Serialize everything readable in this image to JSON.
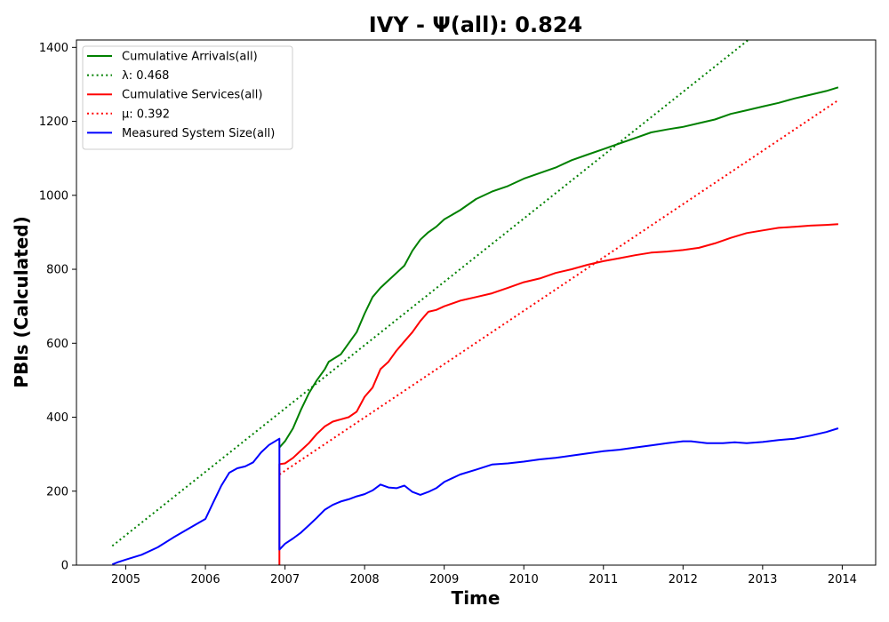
{
  "chart_data": {
    "type": "line",
    "title": "IVY -  Ψ(all): 0.824",
    "xlabel": "Time",
    "ylabel": "PBIs (Calculated)",
    "xlim": [
      2004.38,
      2014.42
    ],
    "ylim": [
      0,
      1420
    ],
    "xticks": [
      2005,
      2006,
      2007,
      2008,
      2009,
      2010,
      2011,
      2012,
      2013,
      2014
    ],
    "xtick_labels": [
      "2005",
      "2006",
      "2007",
      "2008",
      "2009",
      "2010",
      "2011",
      "2012",
      "2013",
      "2014"
    ],
    "yticks": [
      0,
      200,
      400,
      600,
      800,
      1000,
      1200,
      1400
    ],
    "ytick_labels": [
      "0",
      "200",
      "400",
      "600",
      "800",
      "1000",
      "1200",
      "1400"
    ],
    "grid": false,
    "legend_position": "top-left",
    "series": [
      {
        "name": "Cumulative Arrivals(all)",
        "style": "solid",
        "color": "#008000",
        "x": [
          2006.93,
          2007.0,
          2007.1,
          2007.2,
          2007.3,
          2007.4,
          2007.5,
          2007.55,
          2007.7,
          2007.8,
          2007.9,
          2008.0,
          2008.1,
          2008.2,
          2008.3,
          2008.4,
          2008.5,
          2008.6,
          2008.7,
          2008.8,
          2008.9,
          2009.0,
          2009.2,
          2009.4,
          2009.6,
          2009.8,
          2010.0,
          2010.2,
          2010.4,
          2010.6,
          2010.8,
          2011.0,
          2011.2,
          2011.4,
          2011.6,
          2011.8,
          2012.0,
          2012.2,
          2012.4,
          2012.6,
          2012.8,
          2013.0,
          2013.2,
          2013.4,
          2013.6,
          2013.8,
          2013.95
        ],
        "y": [
          318,
          335,
          370,
          420,
          465,
          500,
          530,
          550,
          570,
          600,
          630,
          680,
          725,
          750,
          770,
          790,
          810,
          850,
          880,
          900,
          915,
          935,
          960,
          990,
          1010,
          1025,
          1045,
          1060,
          1075,
          1095,
          1110,
          1125,
          1140,
          1155,
          1170,
          1178,
          1185,
          1195,
          1205,
          1220,
          1230,
          1240,
          1250,
          1262,
          1272,
          1282,
          1292
        ]
      },
      {
        "name": "λ: 0.468",
        "style": "dotted",
        "color": "#008000",
        "x": [
          2004.83,
          2012.82
        ],
        "y": [
          52,
          1420
        ]
      },
      {
        "name": "Cumulative Services(all)",
        "style": "solid",
        "color": "#ff0000",
        "x": [
          2006.93,
          2006.93,
          2007.0,
          2007.1,
          2007.2,
          2007.3,
          2007.4,
          2007.5,
          2007.6,
          2007.8,
          2007.9,
          2008.0,
          2008.1,
          2008.2,
          2008.3,
          2008.4,
          2008.5,
          2008.6,
          2008.7,
          2008.8,
          2008.9,
          2009.0,
          2009.2,
          2009.4,
          2009.6,
          2009.8,
          2010.0,
          2010.2,
          2010.4,
          2010.6,
          2010.8,
          2011.0,
          2011.2,
          2011.4,
          2011.6,
          2011.8,
          2012.0,
          2012.2,
          2012.4,
          2012.6,
          2012.8,
          2013.0,
          2013.2,
          2013.4,
          2013.6,
          2013.8,
          2013.95
        ],
        "y": [
          0,
          273,
          275,
          290,
          310,
          330,
          355,
          375,
          388,
          400,
          415,
          455,
          480,
          530,
          550,
          580,
          605,
          630,
          660,
          685,
          690,
          700,
          715,
          725,
          735,
          750,
          765,
          775,
          790,
          800,
          812,
          822,
          830,
          838,
          845,
          848,
          852,
          858,
          870,
          885,
          898,
          905,
          912,
          915,
          918,
          920,
          922
        ]
      },
      {
        "name": "μ: 0.392",
        "style": "dotted",
        "color": "#ff0000",
        "x": [
          2006.93,
          2013.95
        ],
        "y": [
          245,
          1257
        ]
      },
      {
        "name": "Measured System Size(all)",
        "style": "solid",
        "color": "#0000ff",
        "x": [
          2004.83,
          2004.9,
          2005.0,
          2005.2,
          2005.4,
          2005.6,
          2005.8,
          2006.0,
          2006.1,
          2006.2,
          2006.3,
          2006.4,
          2006.5,
          2006.6,
          2006.7,
          2006.8,
          2006.9,
          2006.93,
          2006.93,
          2007.0,
          2007.1,
          2007.2,
          2007.3,
          2007.4,
          2007.5,
          2007.6,
          2007.7,
          2007.8,
          2007.9,
          2008.0,
          2008.1,
          2008.2,
          2008.3,
          2008.4,
          2008.5,
          2008.6,
          2008.7,
          2008.8,
          2008.9,
          2009.0,
          2009.2,
          2009.4,
          2009.6,
          2009.8,
          2010.0,
          2010.2,
          2010.4,
          2010.6,
          2010.8,
          2011.0,
          2011.2,
          2011.4,
          2011.6,
          2011.8,
          2012.0,
          2012.1,
          2012.3,
          2012.5,
          2012.65,
          2012.8,
          2013.0,
          2013.2,
          2013.4,
          2013.6,
          2013.8,
          2013.95
        ],
        "y": [
          2,
          8,
          15,
          28,
          48,
          75,
          100,
          125,
          170,
          215,
          250,
          262,
          267,
          278,
          305,
          325,
          338,
          342,
          42,
          58,
          72,
          88,
          108,
          128,
          150,
          163,
          172,
          178,
          186,
          192,
          202,
          218,
          210,
          208,
          215,
          198,
          190,
          198,
          208,
          225,
          245,
          258,
          272,
          275,
          280,
          286,
          290,
          296,
          302,
          308,
          312,
          318,
          324,
          330,
          335,
          335,
          330,
          330,
          332,
          330,
          333,
          338,
          342,
          350,
          360,
          370
        ]
      }
    ]
  }
}
